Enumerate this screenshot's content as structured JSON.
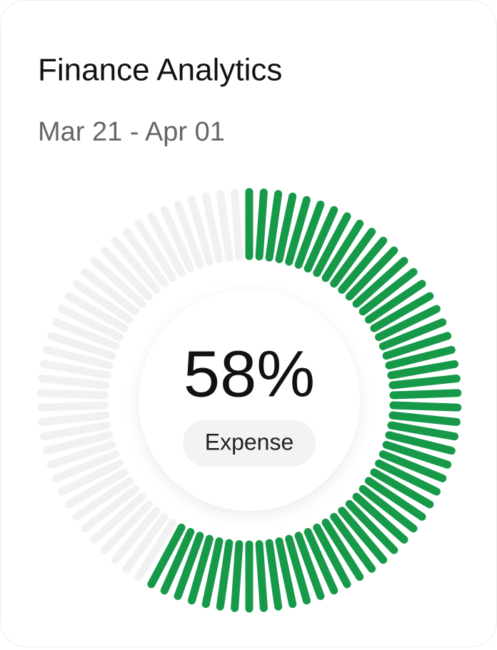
{
  "chart_data": {
    "type": "gauge",
    "title": "Finance Analytics",
    "subtitle": "Mar 21 - Apr 01",
    "values": [
      58
    ],
    "value_labels": [
      "58%"
    ],
    "label": "Expense",
    "ylim": [
      0,
      100
    ],
    "color": "#17994a",
    "track_color": "#f1f1f1"
  }
}
